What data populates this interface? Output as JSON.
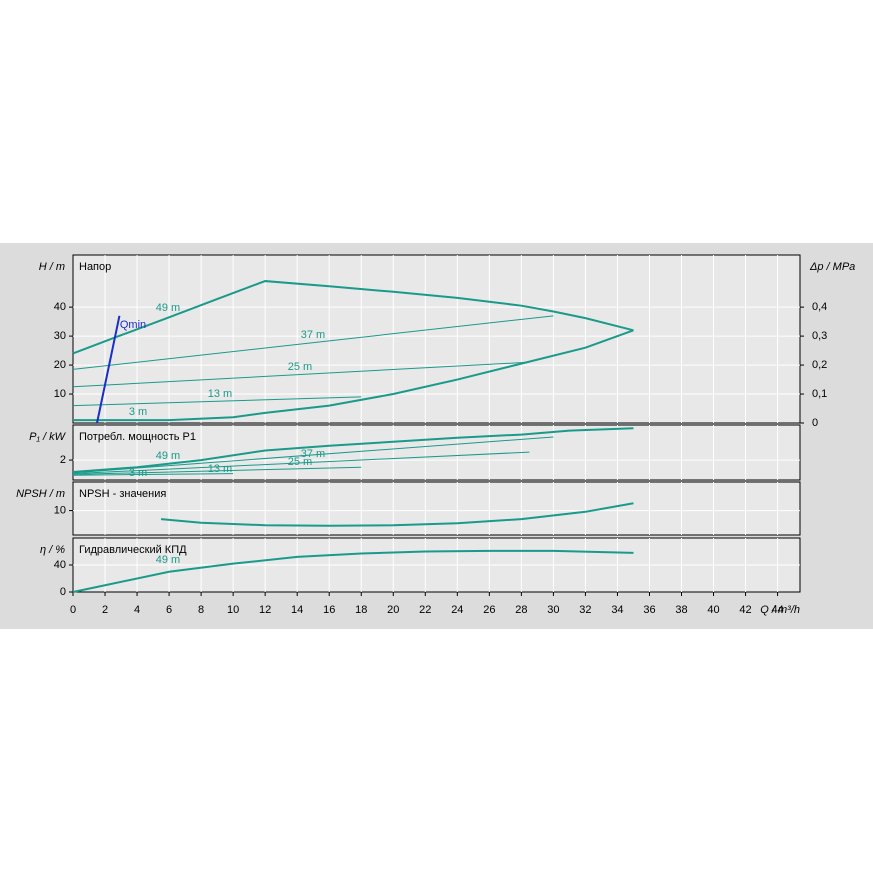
{
  "chart_data": [
    {
      "type": "line",
      "ylabel": "H / m",
      "panel_title": "Напор",
      "y2label": "Δp / MPa",
      "xlim": [
        0,
        45.4
      ],
      "ylim": [
        0,
        58
      ],
      "yticks": [
        10,
        20,
        30,
        40
      ],
      "y2lim": [
        0,
        0.58
      ],
      "y2ticks": [
        0,
        {
          "value": 0.1,
          "label": "0,1"
        },
        {
          "value": 0.2,
          "label": "0,2"
        },
        {
          "value": 0.3,
          "label": "0,3"
        },
        {
          "value": 0.4,
          "label": "0,4"
        }
      ],
      "grid": true,
      "series": [
        {
          "name": "49 m",
          "color": "#1a9a8a",
          "line_width": 2,
          "x": [
            0,
            3,
            6,
            9,
            12,
            16,
            20,
            24,
            28,
            30,
            32,
            35
          ],
          "values": [
            24,
            30.3,
            36.5,
            42.8,
            49,
            47.2,
            45.3,
            43.2,
            40.5,
            38.5,
            36.2,
            32
          ]
        },
        {
          "name": "37 m",
          "color": "#1a9a8a",
          "line_width": 1,
          "x": [
            0,
            30
          ],
          "values": [
            18.5,
            37
          ]
        },
        {
          "name": "25 m",
          "color": "#1a9a8a",
          "line_width": 1,
          "x": [
            0,
            28.5
          ],
          "values": [
            12.5,
            21
          ]
        },
        {
          "name": "13 m",
          "color": "#1a9a8a",
          "line_width": 1,
          "x": [
            0,
            18
          ],
          "values": [
            6,
            9
          ]
        },
        {
          "name": "3 m",
          "color": "#1a9a8a",
          "line_width": 2,
          "x": [
            0,
            6,
            10,
            12,
            16,
            20,
            24,
            28,
            32,
            35
          ],
          "values": [
            1,
            1,
            2,
            3.5,
            6,
            10,
            15,
            20.5,
            26,
            32
          ]
        },
        {
          "name": "Qmin",
          "color": "#1a2ec8",
          "line_width": 2,
          "x": [
            1.5,
            2.9
          ],
          "values": [
            0,
            37
          ]
        }
      ]
    },
    {
      "type": "line",
      "ylabel": "P₁ / kW",
      "panel_title": "Потребл. мощность P1",
      "xlim": [
        0,
        45.4
      ],
      "ylim": [
        -0.5,
        6.4
      ],
      "yticks": [
        2
      ],
      "grid": true,
      "series": [
        {
          "name": "49 m",
          "color": "#1a9a8a",
          "line_width": 2,
          "x": [
            0,
            4,
            8,
            12,
            16,
            20,
            24,
            28,
            31,
            35
          ],
          "values": [
            0.5,
            1.1,
            2,
            3.2,
            3.8,
            4.3,
            4.8,
            5.2,
            5.7,
            6
          ]
        },
        {
          "name": "37 m",
          "color": "#1a9a8a",
          "line_width": 1,
          "x": [
            0,
            30
          ],
          "values": [
            0.4,
            4.9
          ]
        },
        {
          "name": "25 m",
          "color": "#1a9a8a",
          "line_width": 1,
          "x": [
            0,
            28.5
          ],
          "values": [
            0.3,
            3
          ]
        },
        {
          "name": "13 m",
          "color": "#1a9a8a",
          "line_width": 1,
          "x": [
            0,
            18
          ],
          "values": [
            0.2,
            1.1
          ]
        },
        {
          "name": "3 m",
          "color": "#1a9a8a",
          "line_width": 1,
          "x": [
            0,
            10
          ],
          "values": [
            0.1,
            0.3
          ]
        }
      ]
    },
    {
      "type": "line",
      "ylabel": "NPSH / m",
      "panel_title": "NPSH - значения",
      "xlim": [
        0,
        45.4
      ],
      "ylim": [
        0,
        21.7
      ],
      "yticks": [
        10
      ],
      "grid": true,
      "series": [
        {
          "color": "#1a9a8a",
          "line_width": 2,
          "x": [
            5.5,
            8,
            12,
            16,
            20,
            24,
            28,
            32,
            35
          ],
          "values": [
            6.5,
            5,
            4,
            3.8,
            4,
            4.8,
            6.5,
            9.5,
            13
          ]
        }
      ]
    },
    {
      "type": "line",
      "ylabel": "η / %",
      "panel_title": "Гидравлический КПД",
      "xlabel": "Q / m³/h",
      "xlim": [
        0,
        45.4
      ],
      "ylim": [
        0,
        80
      ],
      "yticks": [
        0,
        40
      ],
      "xticks": [
        0,
        2,
        4,
        6,
        8,
        10,
        12,
        14,
        16,
        18,
        20,
        22,
        24,
        26,
        28,
        30,
        32,
        34,
        36,
        38,
        40,
        42,
        44
      ],
      "grid": true,
      "series": [
        {
          "name": "49 m",
          "color": "#1a9a8a",
          "line_width": 2,
          "x": [
            0,
            2,
            6,
            10,
            14,
            18,
            22,
            26,
            30,
            35
          ],
          "values": [
            0,
            10,
            30,
            42,
            52,
            57,
            60,
            61,
            61,
            58
          ]
        }
      ]
    }
  ]
}
